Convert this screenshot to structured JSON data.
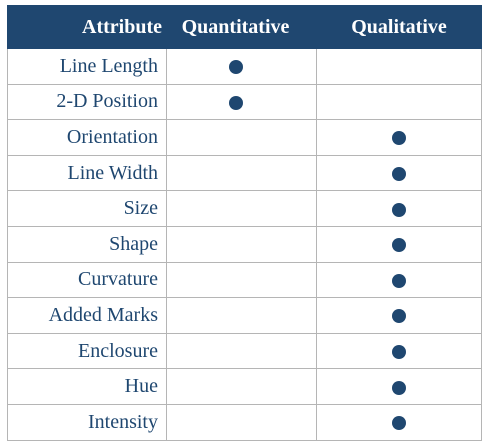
{
  "table": {
    "headers": {
      "attribute": "Attribute",
      "quantitative": "Quantitative",
      "qualitative": "Qualitative"
    },
    "rows": [
      {
        "attribute": "Line Length",
        "quantitative": true,
        "qualitative": false
      },
      {
        "attribute": "2-D Position",
        "quantitative": true,
        "qualitative": false
      },
      {
        "attribute": "Orientation",
        "quantitative": false,
        "qualitative": true
      },
      {
        "attribute": "Line Width",
        "quantitative": false,
        "qualitative": true
      },
      {
        "attribute": "Size",
        "quantitative": false,
        "qualitative": true
      },
      {
        "attribute": "Shape",
        "quantitative": false,
        "qualitative": true
      },
      {
        "attribute": "Curvature",
        "quantitative": false,
        "qualitative": true
      },
      {
        "attribute": "Added Marks",
        "quantitative": false,
        "qualitative": true
      },
      {
        "attribute": "Enclosure",
        "quantitative": false,
        "qualitative": true
      },
      {
        "attribute": "Hue",
        "quantitative": false,
        "qualitative": true
      },
      {
        "attribute": "Intensity",
        "quantitative": false,
        "qualitative": true
      }
    ]
  },
  "colors": {
    "header_background": "#1f4770",
    "header_text": "#ffffff",
    "body_text": "#1f4770",
    "dot": "#1f4770",
    "grid": "#b5b5b5"
  },
  "icons": {
    "mark": "filled-circle-icon"
  }
}
